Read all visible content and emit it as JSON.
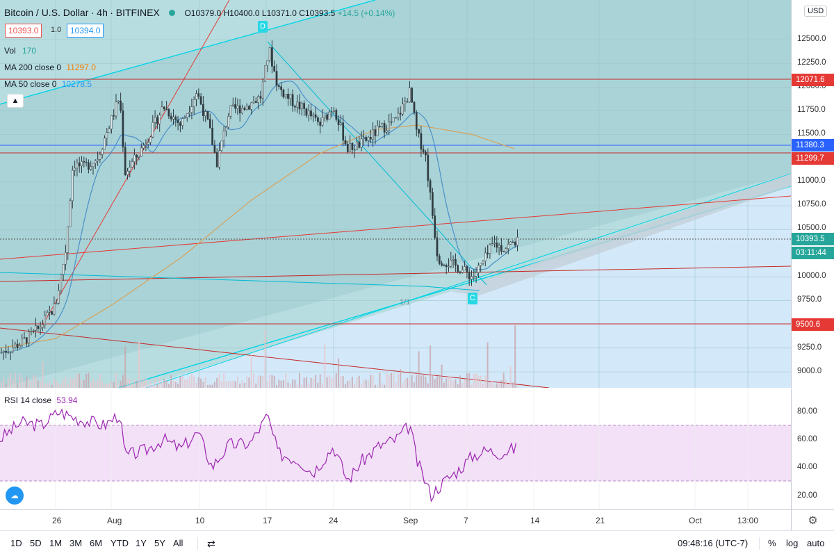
{
  "legend": {
    "symbol": "Bitcoin / U.S. Dollar",
    "interval": "4h",
    "exchange": "BITFINEX",
    "ohlc": "O10379.0 H10400.0 L10371.0 C10393.5",
    "change": "+14.5 (+0.14%)",
    "bid": "10393.0",
    "spread": "1.0",
    "ask": "10394.0",
    "vol_label": "Vol",
    "vol_value": "170",
    "ma200_label": "MA 200 close 0",
    "ma200_value": "11297.0",
    "ma50_label": "MA 50 close 0",
    "ma50_value": "10278.5",
    "rsi_label": "RSI 14 close",
    "rsi_value": "53.94"
  },
  "currency": "USD",
  "collapse_icon": "chevron-up-icon",
  "price_ticks": [
    "12500.0",
    "12250.0",
    "12000.0",
    "11750.0",
    "11500.0",
    "11000.0",
    "10750.0",
    "10500.0",
    "10000.0",
    "9750.0",
    "9250.0",
    "9000.0"
  ],
  "price_labels": {
    "l12071": "12071.6",
    "l11380": "11380.3",
    "l11299": "11299.7",
    "l10393": "10393.5",
    "countdown": "03:11:44",
    "l9500": "9500.6"
  },
  "rsi_ticks": [
    "80.00",
    "60.00",
    "40.00",
    "20.00"
  ],
  "time_ticks": [
    "26",
    "Aug",
    "10",
    "17",
    "24",
    "Sep",
    "7",
    "14",
    "21",
    "Oct",
    "13:00"
  ],
  "markers": {
    "d": "D",
    "c": "C",
    "ratio": "1/1"
  },
  "toolbar": {
    "ranges": [
      "1D",
      "5D",
      "1M",
      "3M",
      "6M",
      "YTD",
      "1Y",
      "5Y",
      "All"
    ],
    "time": "09:48:16 (UTC-7)",
    "percent": "%",
    "log": "log",
    "auto": "auto"
  },
  "colors": {
    "up": "#26a69a",
    "red_line": "#e53935",
    "blue_line": "#2962ff",
    "cyan_line": "#00d4e6",
    "ma50": "#2196f3",
    "ma200": "#ff9800",
    "rsi": "#9c27b0",
    "channel_fill": "#a8d3d8",
    "lower_fill": "#cfe7f8"
  },
  "chart_data": {
    "type": "candlestick",
    "title": "Bitcoin / U.S. Dollar, 4h, BITFINEX",
    "x": [
      "Jul 22",
      "Jul 26",
      "Aug 1",
      "Aug 10",
      "Aug 17",
      "Aug 24",
      "Sep 1",
      "Sep 7",
      "Sep 12"
    ],
    "close_approx": [
      9200,
      9700,
      11200,
      11900,
      12300,
      11500,
      11800,
      10100,
      10393.5
    ],
    "ylim": [
      8900,
      12700
    ],
    "series": [
      {
        "name": "MA 200 close 0",
        "last": 11297.0
      },
      {
        "name": "MA 50 close 0",
        "last": 10278.5
      }
    ],
    "rsi": {
      "name": "RSI 14 close",
      "last": 53.94,
      "ylim": [
        10,
        95
      ],
      "bands": [
        30,
        70
      ]
    },
    "horizontal_levels": [
      12071.6,
      11380.3,
      11299.7,
      10393.5,
      9500.6
    ]
  }
}
